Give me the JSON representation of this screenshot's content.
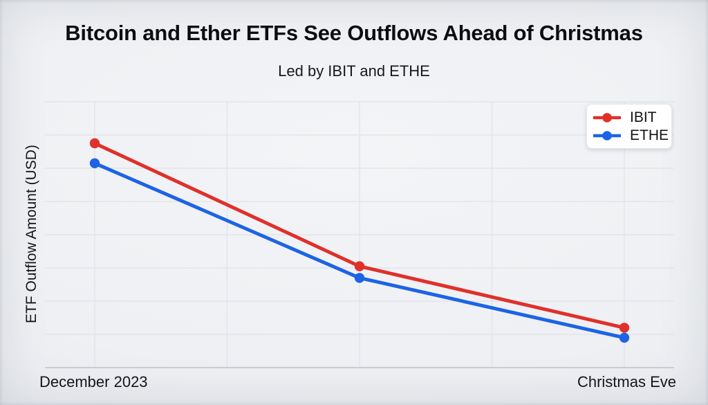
{
  "header": {
    "title": "Bitcoin and Ether ETFs See Outflows Ahead of Christmas",
    "subtitle": "Led by IBIT and ETHE"
  },
  "axes": {
    "y_label": "ETF Outflow Amount (USD)",
    "x_left_label": "December 2023",
    "x_right_label": "Christmas Eve"
  },
  "colors": {
    "ibit_red": "#e0302a",
    "ethe_blue": "#1c63e6",
    "grid_line": "#e1e4e9",
    "axis_line": "#c7cbd2",
    "background": "#eef0f3",
    "legend_bg": "#ffffff"
  },
  "chart_data": {
    "type": "line",
    "title": "Bitcoin and Ether ETFs See Outflows Ahead of Christmas",
    "subtitle": "Led by IBIT and ETHE",
    "xlabel": "",
    "ylabel": "ETF Outflow Amount (USD)",
    "categories": [
      "December 2023",
      "",
      "Christmas Eve"
    ],
    "x_tick_labels_shown": [
      "December 2023",
      "Christmas Eve"
    ],
    "y_tick_labels_shown": [],
    "ylim": [
      0,
      8
    ],
    "y_value_note": "values estimated in horizontal-gridline units; no numeric tick labels are shown",
    "series": [
      {
        "name": "IBIT",
        "color": "#e0302a",
        "values": [
          6.75,
          3.05,
          1.2
        ]
      },
      {
        "name": "ETHE",
        "color": "#1c63e6",
        "values": [
          6.15,
          2.7,
          0.9
        ]
      }
    ],
    "grid": {
      "horizontal_lines": 8,
      "vertical_lines": 5,
      "shown": true
    },
    "legend_position": "top-right",
    "marker": "circle",
    "line_width": 5
  }
}
